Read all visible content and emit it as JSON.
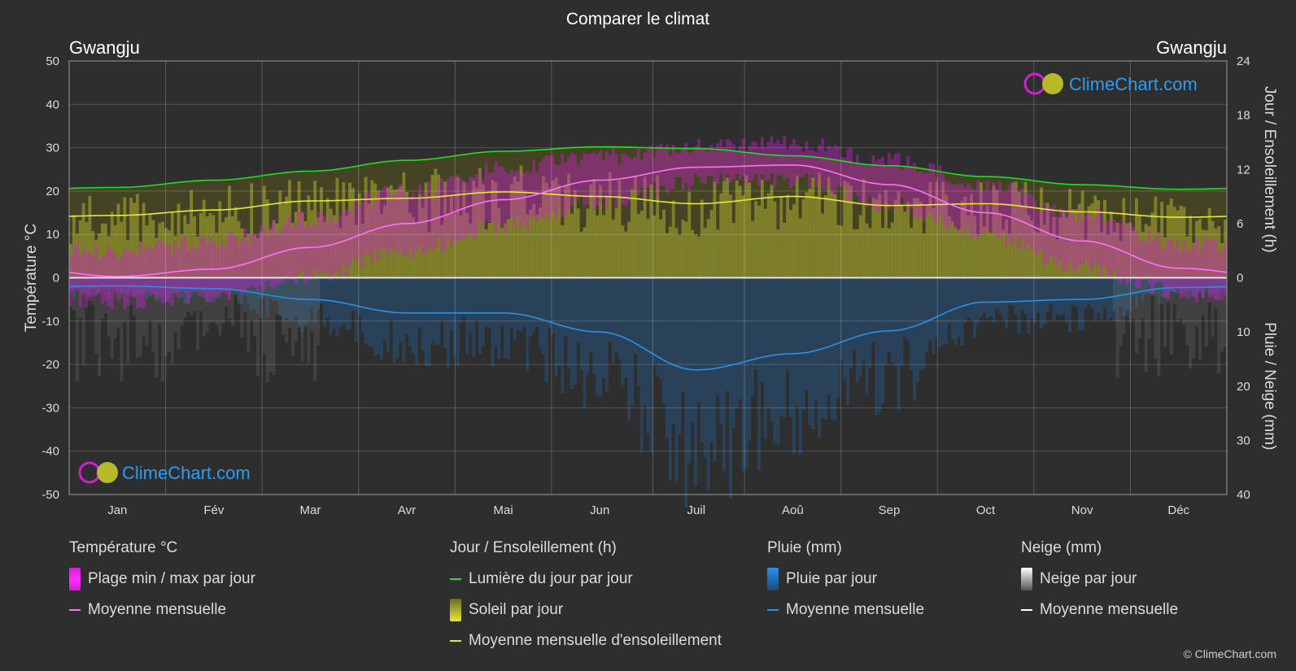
{
  "title": "Comparer le climat",
  "location_left": "Gwangju",
  "location_right": "Gwangju",
  "watermark": "ClimeChart.com",
  "copyright": "© ClimeChart.com",
  "colors": {
    "background": "#2e2e2e",
    "temp_range": "#d020d0",
    "temp_mean": "#ff70ff",
    "daylight": "#22dd22",
    "sunshine": "#c8c832",
    "sunshine_mean": "#e8e83a",
    "rain": "#1e78c8",
    "rain_mean": "#2a90e8",
    "snow": "#c8c8c8",
    "snow_mean": "#ffffff",
    "brand": "#2a9df4"
  },
  "legend": {
    "temperature": {
      "title": "Température °C",
      "items": [
        "Plage min / max par jour",
        "Moyenne mensuelle"
      ]
    },
    "sun": {
      "title": "Jour / Ensoleillement (h)",
      "items": [
        "Lumière du jour par jour",
        "Soleil par jour",
        "Moyenne mensuelle d'ensoleillement"
      ]
    },
    "rain": {
      "title": "Pluie (mm)",
      "items": [
        "Pluie par jour",
        "Moyenne mensuelle"
      ]
    },
    "snow": {
      "title": "Neige (mm)",
      "items": [
        "Neige par jour",
        "Moyenne mensuelle"
      ]
    }
  },
  "chart_data": {
    "type": "area",
    "title": "Comparer le climat",
    "categories": [
      "Jan",
      "Fév",
      "Mar",
      "Avr",
      "Mai",
      "Jun",
      "Juil",
      "Aoû",
      "Sep",
      "Oct",
      "Nov",
      "Déc"
    ],
    "axes": {
      "left": {
        "label": "Température °C",
        "range": [
          -50,
          50
        ],
        "ticks": [
          50,
          40,
          30,
          20,
          10,
          0,
          -10,
          -20,
          -30,
          -40,
          -50
        ]
      },
      "right_top": {
        "label": "Jour / Ensoleillement (h)",
        "range": [
          0,
          24
        ],
        "ticks": [
          24,
          18,
          12,
          6,
          0
        ]
      },
      "right_bottom": {
        "label": "Pluie / Neige (mm)",
        "range": [
          0,
          40
        ],
        "ticks": [
          0,
          10,
          20,
          30,
          40
        ]
      }
    },
    "grid": true,
    "series": [
      {
        "name": "Plage min / max par jour",
        "unit": "°C",
        "min": [
          -5.5,
          -4.0,
          0.5,
          6.0,
          12.0,
          17.5,
          22.0,
          22.5,
          17.0,
          9.5,
          2.5,
          -3.5
        ],
        "max": [
          6.0,
          8.5,
          13.5,
          20.0,
          25.0,
          28.0,
          30.0,
          31.0,
          27.0,
          21.5,
          14.5,
          8.0
        ]
      },
      {
        "name": "Moyenne mensuelle (température)",
        "unit": "°C",
        "values": [
          0.3,
          2.0,
          7.0,
          12.5,
          18.0,
          22.5,
          25.5,
          26.0,
          21.5,
          15.0,
          8.5,
          2.2
        ]
      },
      {
        "name": "Lumière du jour par jour",
        "unit": "h",
        "values": [
          10.0,
          10.8,
          11.8,
          13.0,
          14.0,
          14.5,
          14.3,
          13.5,
          12.4,
          11.2,
          10.3,
          9.8
        ]
      },
      {
        "name": "Moyenne mensuelle d'ensoleillement",
        "unit": "h",
        "values": [
          6.9,
          7.5,
          8.5,
          8.8,
          9.5,
          9.0,
          8.2,
          9.0,
          8.0,
          8.2,
          7.3,
          6.7
        ]
      },
      {
        "name": "Moyenne mensuelle (pluie)",
        "unit": "mm",
        "values": [
          1.5,
          2.0,
          4.0,
          6.5,
          6.5,
          10.0,
          17.0,
          14.0,
          9.8,
          4.5,
          4.0,
          1.8
        ]
      },
      {
        "name": "Moyenne mensuelle (neige)",
        "unit": "mm",
        "values": [
          0,
          0,
          0,
          0,
          0,
          0,
          0,
          0,
          0,
          0,
          0,
          0
        ]
      }
    ]
  }
}
